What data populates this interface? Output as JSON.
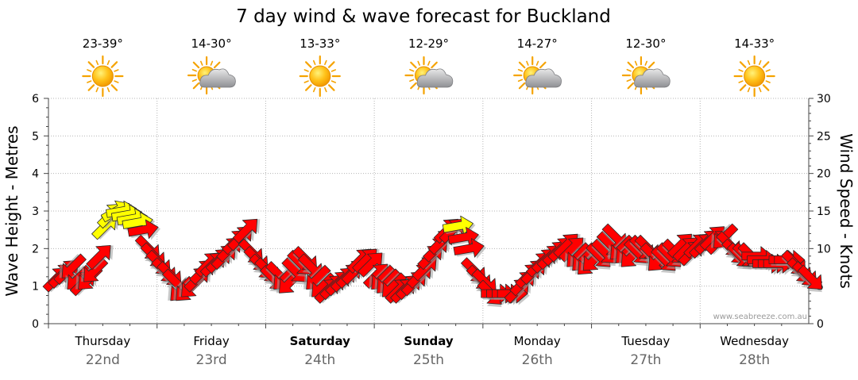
{
  "chart_data": {
    "type": "line",
    "title": "7 day wind & wave forecast for Buckland",
    "ylabel_left": "Wave Height - Metres",
    "ylabel_right": "Wind Speed - Knots",
    "ylim_left": [
      0,
      6
    ],
    "ylim_right": [
      0,
      30
    ],
    "yticks_left": [
      "0",
      "1",
      "2",
      "3",
      "4",
      "5",
      "6"
    ],
    "yticks_right": [
      "0",
      "5",
      "10",
      "15",
      "20",
      "25",
      "30"
    ],
    "grid": true,
    "watermark": "www.seabreeze.com.au",
    "days": [
      {
        "name": "Thursday",
        "date": "22nd",
        "temp": "23-39°",
        "icon": "sun-icon",
        "bold": false
      },
      {
        "name": "Friday",
        "date": "23rd",
        "temp": "14-30°",
        "icon": "sun-cloud-icon",
        "bold": false
      },
      {
        "name": "Saturday",
        "date": "24th",
        "temp": "13-33°",
        "icon": "sun-icon",
        "bold": true
      },
      {
        "name": "Sunday",
        "date": "25th",
        "temp": "12-29°",
        "icon": "sun-cloud-icon",
        "bold": true
      },
      {
        "name": "Monday",
        "date": "26th",
        "temp": "14-27°",
        "icon": "sun-cloud-icon",
        "bold": false
      },
      {
        "name": "Tuesday",
        "date": "27th",
        "temp": "12-30°",
        "icon": "sun-cloud-icon",
        "bold": false
      },
      {
        "name": "Wednesday",
        "date": "28th",
        "temp": "14-33°",
        "icon": "sun-icon",
        "bold": false
      }
    ],
    "arrow_colors": {
      "moderate": "#ff0000",
      "strong": "#ffff00"
    },
    "wind_series": {
      "name": "Wind Speed",
      "x_days": [
        0.0,
        0.05,
        0.1,
        0.15,
        0.2,
        0.25,
        0.3,
        0.35,
        0.4,
        0.45,
        0.5,
        0.55,
        0.6,
        0.65,
        0.7,
        0.75,
        0.8,
        0.85,
        0.9,
        0.95,
        1.0,
        1.05,
        1.1,
        1.15,
        1.2,
        1.25,
        1.3,
        1.35,
        1.4,
        1.45,
        1.5,
        1.55,
        1.6,
        1.65,
        1.7,
        1.75,
        1.8,
        1.85,
        1.9,
        1.95,
        2.0,
        2.05,
        2.1,
        2.15,
        2.2,
        2.25,
        2.3,
        2.35,
        2.4,
        2.45,
        2.5,
        2.55,
        2.6,
        2.65,
        2.7,
        2.75,
        2.8,
        2.85,
        2.9,
        2.95,
        3.0,
        3.05,
        3.1,
        3.15,
        3.2,
        3.25,
        3.3,
        3.35,
        3.4,
        3.45,
        3.5,
        3.55,
        3.6,
        3.65,
        3.7,
        3.75,
        3.8,
        3.85,
        3.9,
        3.95,
        4.0,
        4.05,
        4.1,
        4.15,
        4.2,
        4.25,
        4.3,
        4.35,
        4.4,
        4.45,
        4.5,
        4.55,
        4.6,
        4.65,
        4.7,
        4.75,
        4.8,
        4.85,
        4.9,
        4.95,
        5.0,
        5.05,
        5.1,
        5.15,
        5.2,
        5.25,
        5.3,
        5.35,
        5.4,
        5.45,
        5.5,
        5.55,
        5.6,
        5.65,
        5.7,
        5.75,
        5.8,
        5.85,
        5.9,
        5.95,
        6.0,
        6.05,
        6.1,
        6.15,
        6.2,
        6.25,
        6.3,
        6.35,
        6.4,
        6.45,
        6.5,
        6.55,
        6.6,
        6.65,
        6.7,
        6.75,
        6.8,
        6.85,
        6.9,
        6.95
      ],
      "knots": [
        6.0,
        6.5,
        7.0,
        7.5,
        6.0,
        5.5,
        6.0,
        7.0,
        9.0,
        13.0,
        14.5,
        15.0,
        15.0,
        14.5,
        14.0,
        13.5,
        12.5,
        10.0,
        9.0,
        8.0,
        7.0,
        6.5,
        5.5,
        4.5,
        4.5,
        5.0,
        6.0,
        7.0,
        8.0,
        8.0,
        8.5,
        9.0,
        10.0,
        11.0,
        11.5,
        12.5,
        9.5,
        8.5,
        7.5,
        7.0,
        6.0,
        6.5,
        6.0,
        5.5,
        7.0,
        8.0,
        8.5,
        7.5,
        6.0,
        5.0,
        4.5,
        5.0,
        5.5,
        6.0,
        6.5,
        7.0,
        8.5,
        8.5,
        8.0,
        6.5,
        6.0,
        5.5,
        5.0,
        4.5,
        4.5,
        5.0,
        5.5,
        6.5,
        7.5,
        9.0,
        10.0,
        11.0,
        12.5,
        12.5,
        13.0,
        11.5,
        10.0,
        7.0,
        6.0,
        5.5,
        4.0,
        4.0,
        4.0,
        4.0,
        4.0,
        4.5,
        5.5,
        6.5,
        7.0,
        8.0,
        8.5,
        9.0,
        9.5,
        10.0,
        10.5,
        10.0,
        9.0,
        8.5,
        8.0,
        8.5,
        9.0,
        9.5,
        10.5,
        11.5,
        10.0,
        9.5,
        9.0,
        9.5,
        10.0,
        10.0,
        9.0,
        8.5,
        8.5,
        9.0,
        9.5,
        10.5,
        10.0,
        9.5,
        10.5,
        10.5,
        11.0,
        11.5,
        11.0,
        11.5,
        10.5,
        9.5,
        9.0,
        9.0,
        9.0,
        9.0,
        8.5,
        8.0,
        8.0,
        8.0,
        8.5,
        8.5,
        8.0,
        7.0,
        6.5,
        6.0
      ],
      "direction_deg": [
        45,
        45,
        45,
        225,
        225,
        45,
        225,
        225,
        45,
        45,
        45,
        60,
        80,
        80,
        80,
        80,
        80,
        135,
        135,
        135,
        135,
        135,
        135,
        225,
        225,
        225,
        45,
        45,
        45,
        45,
        45,
        45,
        45,
        45,
        45,
        45,
        135,
        135,
        135,
        135,
        135,
        135,
        225,
        225,
        135,
        135,
        135,
        135,
        225,
        225,
        45,
        45,
        45,
        45,
        45,
        45,
        45,
        45,
        45,
        45,
        225,
        225,
        225,
        45,
        45,
        45,
        45,
        45,
        45,
        45,
        45,
        45,
        45,
        45,
        80,
        80,
        80,
        135,
        135,
        135,
        135,
        90,
        90,
        90,
        90,
        45,
        45,
        45,
        45,
        45,
        45,
        45,
        45,
        45,
        45,
        45,
        225,
        225,
        225,
        225,
        135,
        135,
        135,
        135,
        225,
        225,
        225,
        135,
        135,
        135,
        135,
        225,
        135,
        135,
        135,
        45,
        45,
        45,
        45,
        45,
        45,
        45,
        45,
        225,
        135,
        135,
        135,
        135,
        135,
        90,
        90,
        90,
        90,
        90,
        90,
        90,
        135,
        135,
        135,
        135
      ]
    }
  }
}
